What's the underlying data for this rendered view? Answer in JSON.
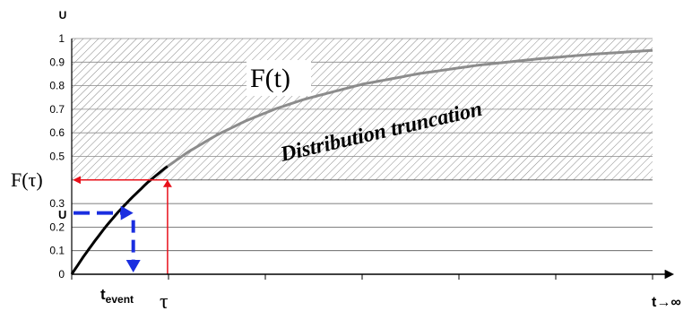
{
  "chart_data": {
    "type": "line",
    "y_axis_label": "U",
    "x_axis_label": "t→∞",
    "ylim": [
      0,
      1
    ],
    "y_ticks": [
      "0",
      "0.1",
      "0.2",
      "0.3",
      "",
      "0.5",
      "0.6",
      "0.7",
      "0.8",
      "0.9",
      "1"
    ],
    "curve": {
      "x": [
        0,
        0.02,
        0.04,
        0.06,
        0.08,
        0.1,
        0.13,
        0.16,
        0.2,
        0.25,
        0.3,
        0.35,
        0.4,
        0.5,
        0.6,
        0.7,
        0.8,
        0.9,
        1.0
      ],
      "y": [
        0,
        0.074,
        0.142,
        0.206,
        0.264,
        0.316,
        0.388,
        0.449,
        0.518,
        0.591,
        0.651,
        0.701,
        0.742,
        0.806,
        0.852,
        0.887,
        0.913,
        0.934,
        0.95
      ]
    },
    "truncation_level": 0.4,
    "tau_x": 0.165,
    "u_value": 0.26,
    "t_event_x": 0.106,
    "shaded_region_label": "Distribution truncation",
    "annotations": {
      "F_t": "F(t)",
      "F_tau": "F(τ)",
      "u": "U",
      "t_event_main": "t",
      "t_event_sub": "event",
      "tau": "τ"
    },
    "colors": {
      "curve_solid": "#000000",
      "curve_truncated": "#8c8c8c",
      "tau_lines": "#e8101a",
      "u_arrows": "#1a2ee0",
      "hatch": "#8a8a8a"
    }
  }
}
